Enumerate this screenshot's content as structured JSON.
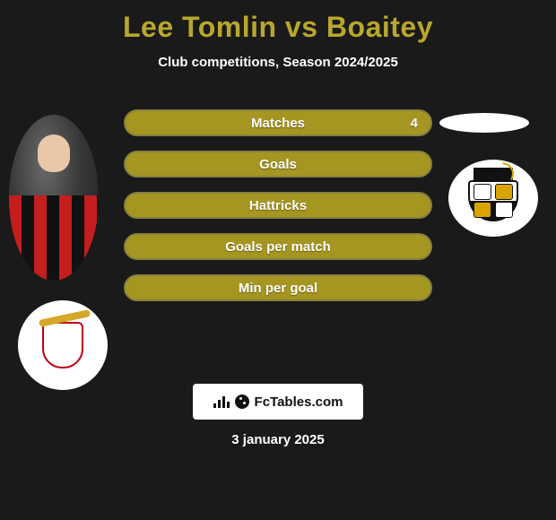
{
  "title": "Lee Tomlin vs Boaitey",
  "subtitle": "Club competitions, Season 2024/2025",
  "colors": {
    "background": "#1a1a1a",
    "accent": "#b8a72e",
    "pill_fill": "#a59521",
    "pill_border": "#868040",
    "text_white": "#ffffff"
  },
  "stats": [
    {
      "label": "Matches",
      "value_right": "4"
    },
    {
      "label": "Goals",
      "value_right": ""
    },
    {
      "label": "Hattricks",
      "value_right": ""
    },
    {
      "label": "Goals per match",
      "value_right": ""
    },
    {
      "label": "Min per goal",
      "value_right": ""
    }
  ],
  "branding": "FcTables.com",
  "date": "3 january 2025",
  "left_player": {
    "jersey_colors": [
      "#c41e1e",
      "#111111"
    ]
  },
  "left_club": {
    "name": "doncaster-style-crest"
  },
  "right_club": {
    "name": "port-vale-style-crest"
  }
}
